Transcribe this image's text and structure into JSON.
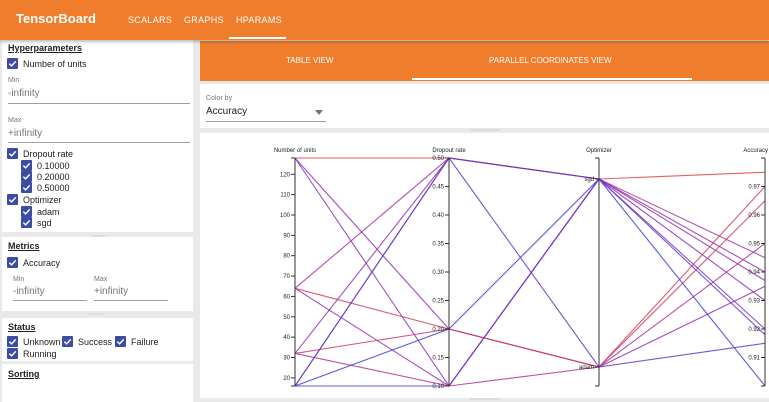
{
  "app": {
    "brand": "TensorBoard",
    "nav_tabs": [
      "SCALARS",
      "GRAPHS",
      "HPARAMS"
    ],
    "active_tab": "HPARAMS",
    "accent_color": "#ef7d2c",
    "checkbox_color": "#3c4ca3"
  },
  "sidebar": {
    "hyperparameters": {
      "title": "Hyperparameters",
      "num_units": {
        "label": "Number of units",
        "checked": true,
        "min_label": "Min",
        "min_value": "-infinity",
        "max_label": "Max",
        "max_value": "+infinity"
      },
      "dropout": {
        "label": "Dropout rate",
        "checked": true,
        "values": [
          "0.10000",
          "0.20000",
          "0.50000"
        ]
      },
      "optimizer": {
        "label": "Optimizer",
        "checked": true,
        "values": [
          "adam",
          "sgd"
        ]
      }
    },
    "metrics": {
      "title": "Metrics",
      "accuracy": {
        "label": "Accuracy",
        "checked": true
      },
      "min_label": "Min",
      "min_value": "-infinity",
      "max_label": "Max",
      "max_value": "+infinity"
    },
    "status": {
      "title": "Status",
      "items": [
        "Unknown",
        "Success",
        "Failure",
        "Running"
      ]
    },
    "sorting": {
      "title": "Sorting"
    }
  },
  "main": {
    "view_tabs": [
      "TABLE VIEW",
      "PARALLEL COORDINATES VIEW"
    ],
    "active_view": "PARALLEL COORDINATES VIEW",
    "color_by": {
      "label": "Color by",
      "value": "Accuracy"
    }
  },
  "chart_data": {
    "type": "parallel_coordinates",
    "axes": [
      {
        "name": "Number of units",
        "kind": "linear",
        "range": [
          16,
          128
        ],
        "ticks": [
          20,
          30,
          40,
          50,
          60,
          70,
          80,
          90,
          100,
          110,
          120
        ]
      },
      {
        "name": "Dropout rate",
        "kind": "linear",
        "range": [
          0.1,
          0.5
        ],
        "ticks": [
          "0.10",
          "0.15",
          "0.20",
          "0.25",
          "0.30",
          "0.35",
          "0.40",
          "0.45",
          "0.50"
        ]
      },
      {
        "name": "Optimizer",
        "kind": "categorical",
        "categories": [
          "adam",
          "sgd"
        ]
      },
      {
        "name": "Accuracy",
        "kind": "linear",
        "range": [
          0.9,
          0.98
        ],
        "ticks": [
          "0.91",
          "0.92",
          "0.93",
          "0.94",
          "0.95",
          "0.96",
          "0.97"
        ]
      }
    ],
    "color_by": "Accuracy",
    "color_scale": [
      "#3d3ddb",
      "#9b2fae",
      "#e8453c"
    ],
    "runs": [
      {
        "units": 128,
        "dropout": 0.5,
        "optimizer": "sgd",
        "accuracy": 0.975
      },
      {
        "units": 128,
        "dropout": 0.1,
        "optimizer": "sgd",
        "accuracy": 0.93
      },
      {
        "units": 128,
        "dropout": 0.2,
        "optimizer": "adam",
        "accuracy": 0.935
      },
      {
        "units": 64,
        "dropout": 0.5,
        "optimizer": "sgd",
        "accuracy": 0.945
      },
      {
        "units": 64,
        "dropout": 0.2,
        "optimizer": "adam",
        "accuracy": 0.97
      },
      {
        "units": 64,
        "dropout": 0.1,
        "optimizer": "sgd",
        "accuracy": 0.94
      },
      {
        "units": 32,
        "dropout": 0.5,
        "optimizer": "sgd",
        "accuracy": 0.937
      },
      {
        "units": 32,
        "dropout": 0.2,
        "optimizer": "adam",
        "accuracy": 0.965
      },
      {
        "units": 32,
        "dropout": 0.1,
        "optimizer": "adam",
        "accuracy": 0.95
      },
      {
        "units": 16,
        "dropout": 0.5,
        "optimizer": "sgd",
        "accuracy": 0.92
      },
      {
        "units": 16,
        "dropout": 0.1,
        "optimizer": "sgd",
        "accuracy": 0.918
      },
      {
        "units": 16,
        "dropout": 0.2,
        "optimizer": "sgd",
        "accuracy": 0.9
      },
      {
        "units": 16,
        "dropout": 0.5,
        "optimizer": "adam",
        "accuracy": 0.915
      }
    ]
  }
}
